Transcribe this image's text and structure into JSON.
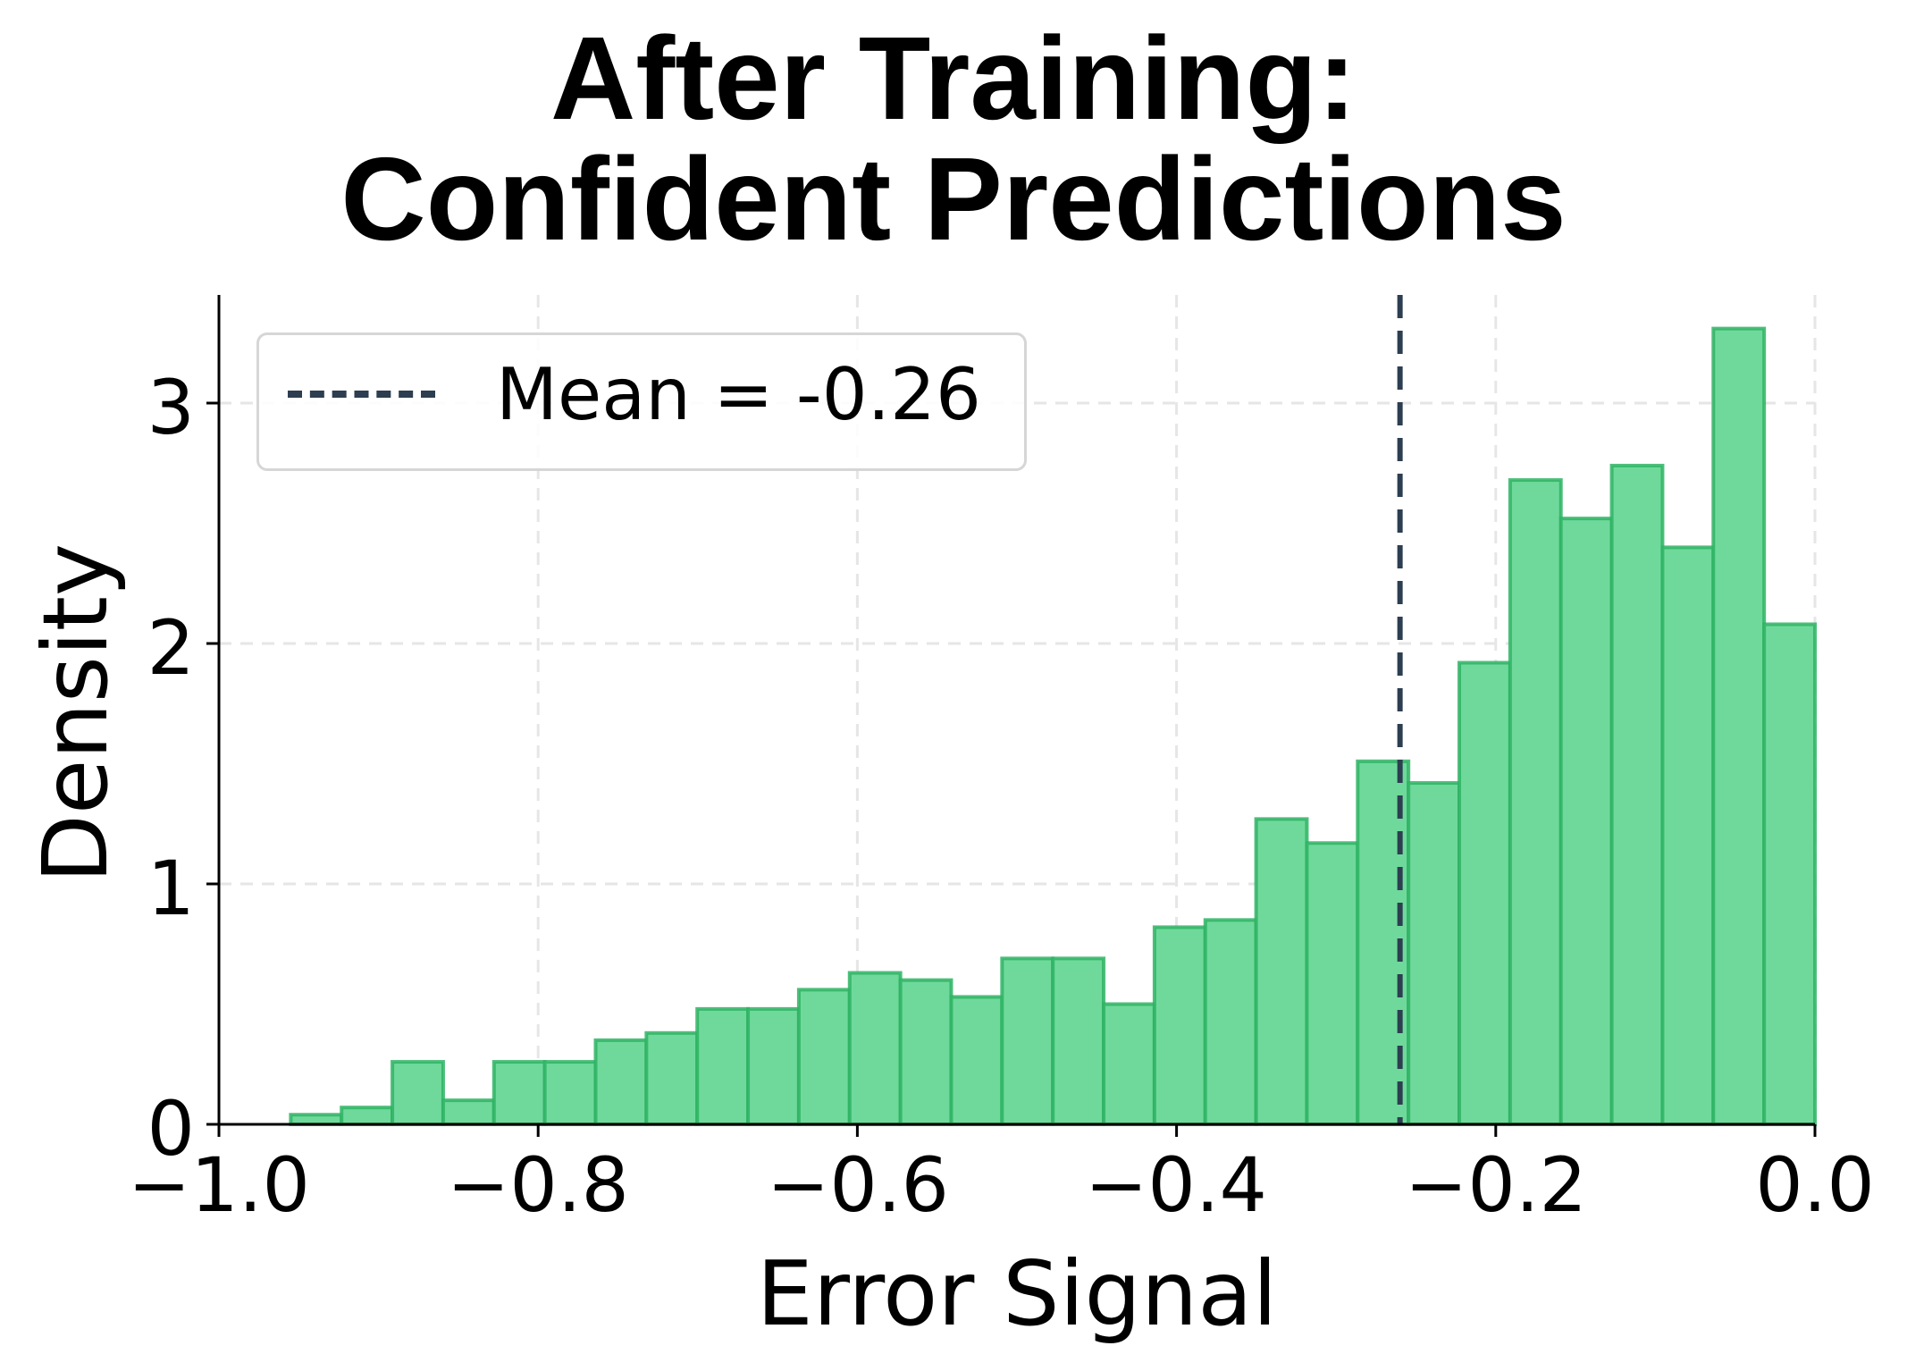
{
  "title": {
    "line1": "After Training:",
    "line2": "Confident Predictions"
  },
  "axes": {
    "xlabel": "Error Signal",
    "ylabel": "Density",
    "xticks": [
      "−1.0",
      "−0.8",
      "−0.6",
      "−0.4",
      "−0.2",
      "0.0"
    ],
    "yticks": [
      "0",
      "1",
      "2",
      "3"
    ]
  },
  "legend": {
    "label": "Mean = -0.26"
  },
  "colors": {
    "bar_fill": "#6fd99b",
    "bar_edge": "#2fb364",
    "mean_line": "#2c3e50",
    "grid": "#e6e6e6"
  },
  "chart_data": {
    "type": "bar",
    "subtype": "histogram",
    "title": "After Training: Confident Predictions",
    "xlabel": "Error Signal",
    "ylabel": "Density",
    "xlim": [
      -1.0,
      0.0
    ],
    "ylim": [
      0,
      3.48
    ],
    "xticks": [
      -1.0,
      -0.8,
      -0.6,
      -0.4,
      -0.2,
      0.0
    ],
    "yticks": [
      0,
      1,
      2,
      3
    ],
    "grid": true,
    "legend_position": "upper left",
    "bin_start": -0.955,
    "bin_end": 0.0,
    "bin_count": 30,
    "values": [
      0.04,
      0.07,
      0.26,
      0.1,
      0.26,
      0.26,
      0.35,
      0.38,
      0.48,
      0.48,
      0.56,
      0.63,
      0.6,
      0.53,
      0.69,
      0.69,
      0.5,
      0.82,
      0.85,
      1.27,
      1.17,
      1.51,
      1.42,
      1.92,
      2.68,
      2.52,
      2.74,
      2.4,
      3.31,
      2.08
    ],
    "annotations": [
      {
        "type": "vline",
        "x": -0.26,
        "style": "dashed",
        "label": "Mean = -0.26"
      }
    ]
  }
}
